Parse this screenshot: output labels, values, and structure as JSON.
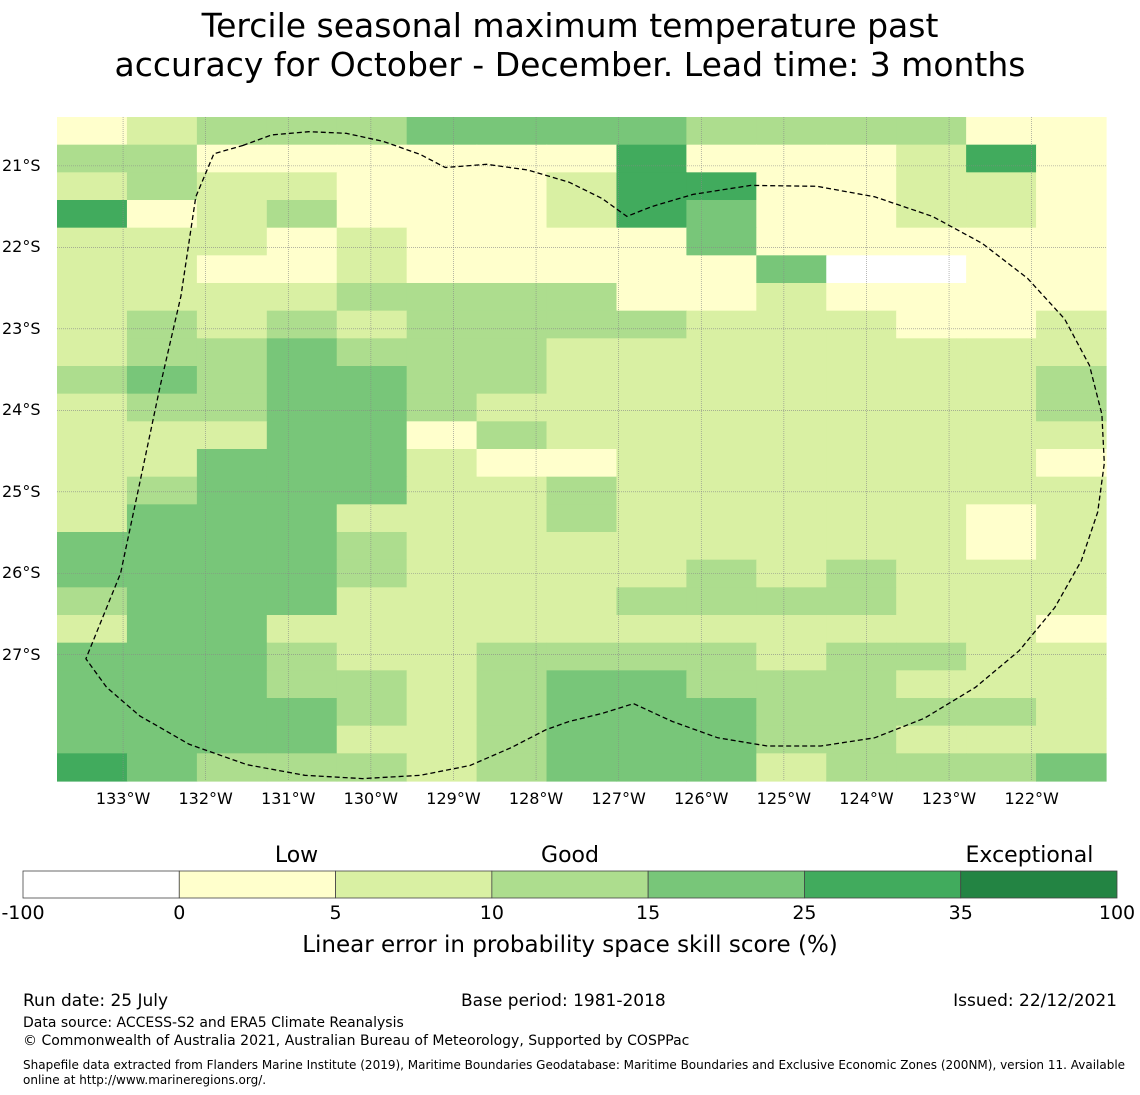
{
  "title_lines": [
    "Tercile seasonal maximum temperature past",
    "accuracy for October - December. Lead time: 3 months"
  ],
  "map": {
    "lon_range": [
      -133.8,
      -121.1
    ],
    "lat_range": [
      -28.55,
      -20.4
    ],
    "lat_ticks": [
      {
        "value": -21,
        "label": "21°S"
      },
      {
        "value": -22,
        "label": "22°S"
      },
      {
        "value": -23,
        "label": "23°S"
      },
      {
        "value": -24,
        "label": "24°S"
      },
      {
        "value": -25,
        "label": "25°S"
      },
      {
        "value": -26,
        "label": "26°S"
      },
      {
        "value": -27,
        "label": "27°S"
      }
    ],
    "lon_ticks": [
      {
        "value": -133,
        "label": "133°W"
      },
      {
        "value": -132,
        "label": "132°W"
      },
      {
        "value": -131,
        "label": "131°W"
      },
      {
        "value": -130,
        "label": "130°W"
      },
      {
        "value": -129,
        "label": "129°W"
      },
      {
        "value": -128,
        "label": "128°W"
      },
      {
        "value": -127,
        "label": "127°W"
      },
      {
        "value": -126,
        "label": "126°W"
      },
      {
        "value": -125,
        "label": "125°W"
      },
      {
        "value": -124,
        "label": "124°W"
      },
      {
        "value": -123,
        "label": "123°W"
      },
      {
        "value": -122,
        "label": "122°W"
      }
    ],
    "grid_note": "rows top to bottom, 15 columns; values are color class index 0..7 (see colorbar)",
    "grid": [
      "123334444333311",
      "331111115111251",
      "232211125511221",
      "512311125411221",
      "222121111411111",
      "221121111140011",
      "222233331121111",
      "232323333222112",
      "233433322222222",
      "343443322222223",
      "233443222222223",
      "222441322222222",
      "224442112222221",
      "234442232222222",
      "244422232222212",
      "444432222222212",
      "444432222323222",
      "344422223333222",
      "244222222222221",
      "444322333323322",
      "444332344333222",
      "444432344433332",
      "444422344433222",
      "543332344423334"
    ],
    "outline_note": "EEZ boundary, dashed; lon/lat points",
    "outline": [
      [
        -131.55,
        -20.75
      ],
      [
        -131.2,
        -20.62
      ],
      [
        -130.75,
        -20.58
      ],
      [
        -130.3,
        -20.6
      ],
      [
        -129.85,
        -20.7
      ],
      [
        -129.4,
        -20.86
      ],
      [
        -129.1,
        -21.02
      ],
      [
        -128.6,
        -20.98
      ],
      [
        -128.1,
        -21.05
      ],
      [
        -127.6,
        -21.2
      ],
      [
        -127.2,
        -21.4
      ],
      [
        -126.9,
        -21.62
      ],
      [
        -126.6,
        -21.5
      ],
      [
        -126.1,
        -21.35
      ],
      [
        -125.4,
        -21.24
      ],
      [
        -124.6,
        -21.25
      ],
      [
        -123.9,
        -21.38
      ],
      [
        -123.2,
        -21.62
      ],
      [
        -122.6,
        -21.95
      ],
      [
        -122.05,
        -22.38
      ],
      [
        -121.6,
        -22.88
      ],
      [
        -121.3,
        -23.45
      ],
      [
        -121.15,
        -24.05
      ],
      [
        -121.12,
        -24.65
      ],
      [
        -121.2,
        -25.25
      ],
      [
        -121.4,
        -25.85
      ],
      [
        -121.72,
        -26.42
      ],
      [
        -122.15,
        -26.95
      ],
      [
        -122.68,
        -27.4
      ],
      [
        -123.3,
        -27.78
      ],
      [
        -123.9,
        -28.02
      ],
      [
        -124.55,
        -28.12
      ],
      [
        -125.2,
        -28.12
      ],
      [
        -125.8,
        -28.02
      ],
      [
        -126.35,
        -27.82
      ],
      [
        -126.82,
        -27.6
      ],
      [
        -127.2,
        -27.72
      ],
      [
        -127.6,
        -27.82
      ],
      [
        -127.88,
        -27.92
      ],
      [
        -128.3,
        -28.14
      ],
      [
        -128.8,
        -28.36
      ],
      [
        -129.4,
        -28.48
      ],
      [
        -130.1,
        -28.52
      ],
      [
        -130.8,
        -28.48
      ],
      [
        -131.5,
        -28.35
      ],
      [
        -132.2,
        -28.1
      ],
      [
        -132.8,
        -27.75
      ],
      [
        -133.2,
        -27.4
      ],
      [
        -133.45,
        -27.05
      ],
      [
        -133.03,
        -26.0
      ],
      [
        -132.8,
        -24.9
      ],
      [
        -132.55,
        -23.7
      ],
      [
        -132.3,
        -22.6
      ],
      [
        -132.12,
        -21.38
      ],
      [
        -131.9,
        -20.85
      ],
      [
        -131.55,
        -20.75
      ]
    ]
  },
  "colorbar": {
    "categories": [
      {
        "label": "Low",
        "position": 0.25
      },
      {
        "label": "Good",
        "position": 0.5
      },
      {
        "label": "Exceptional",
        "position": 0.92
      }
    ],
    "bins": [
      {
        "from": -100,
        "to": 0,
        "color": "#ffffff"
      },
      {
        "from": 0,
        "to": 5,
        "color": "#ffffcc"
      },
      {
        "from": 5,
        "to": 10,
        "color": "#d9f0a3"
      },
      {
        "from": 10,
        "to": 15,
        "color": "#addd8e"
      },
      {
        "from": 15,
        "to": 25,
        "color": "#78c679"
      },
      {
        "from": 25,
        "to": 35,
        "color": "#41ab5d"
      },
      {
        "from": 35,
        "to": 100,
        "color": "#238443"
      }
    ],
    "tick_labels": [
      "-100",
      "0",
      "5",
      "10",
      "15",
      "25",
      "35",
      "100"
    ],
    "label": "Linear error in probability space skill score (%)"
  },
  "footer": {
    "run_date": "Run date: 25 July",
    "base_period": "Base period: 1981-2018",
    "issued": "Issued: 22/12/2021",
    "data_source": "Data source: ACCESS-S2 and ERA5 Climate Reanalysis",
    "copyright": "© Commonwealth of Australia 2021, Australian Bureau of Meteorology, Supported by COSPPac",
    "shapefile_line1": "Shapefile data extracted from Flanders Marine Institute (2019), Maritime Boundaries Geodatabase: Maritime Boundaries and Exclusive Economic Zones (200NM), version 11. Available",
    "shapefile_line2": "online at http://www.marineregions.org/."
  }
}
